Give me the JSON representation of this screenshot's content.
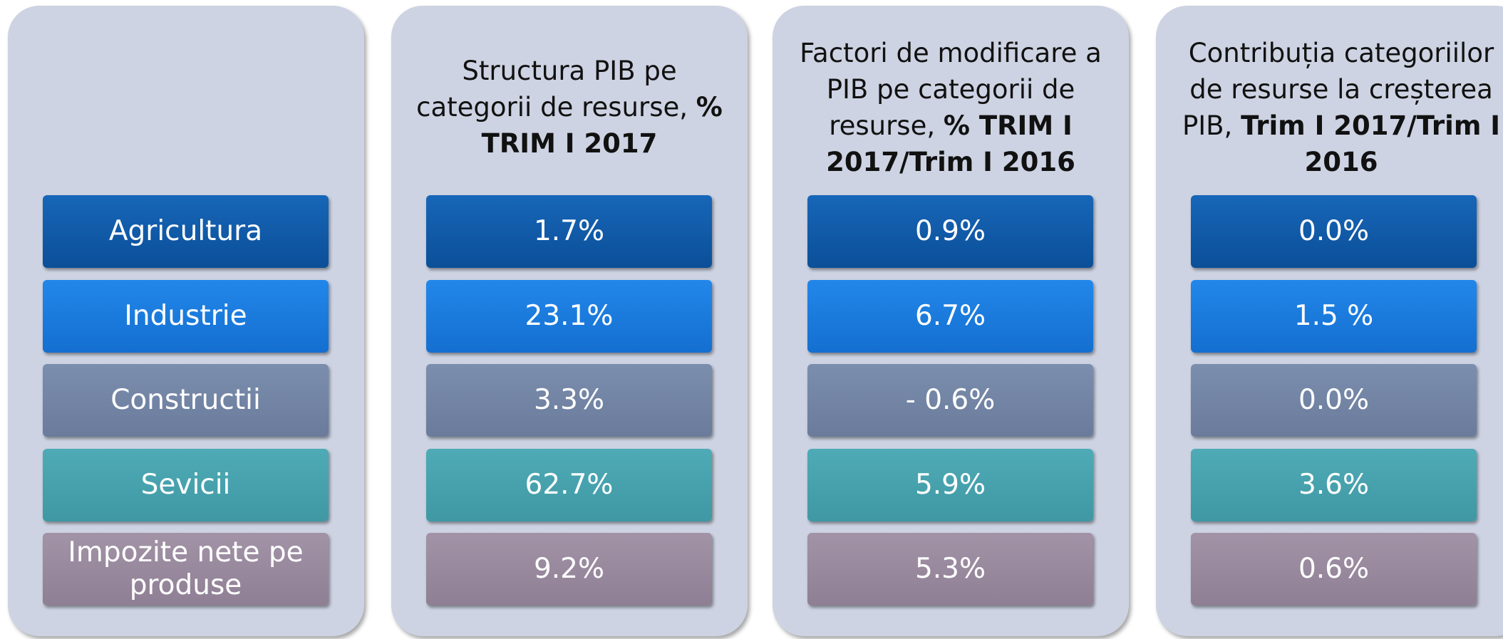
{
  "row_labels": [
    "Agricultura",
    "Industrie",
    "Constructii",
    "Sevicii",
    "Impozite nete pe produse"
  ],
  "columns": [
    {
      "header": {
        "text": "Structura PIB pe categorii de resurse, ",
        "bold": "% TRIM I 2017"
      },
      "values": [
        "1.7%",
        "23.1%",
        "3.3%",
        "62.7%",
        "9.2%"
      ]
    },
    {
      "header": {
        "text": "Factori de modificare a PIB pe categorii de resurse, ",
        "bold": "% TRIM I 2017/Trim I 2016"
      },
      "values": [
        "0.9%",
        "6.7%",
        "- 0.6%",
        "5.9%",
        "5.3%"
      ]
    },
    {
      "header": {
        "text": "Contribuția categoriilor de resurse la creșterea PIB, ",
        "bold": "Trim I 2017/Trim I 2016"
      },
      "values": [
        "0.0%",
        "1.5 %",
        "0.0%",
        "3.6%",
        "0.6%"
      ]
    }
  ]
}
